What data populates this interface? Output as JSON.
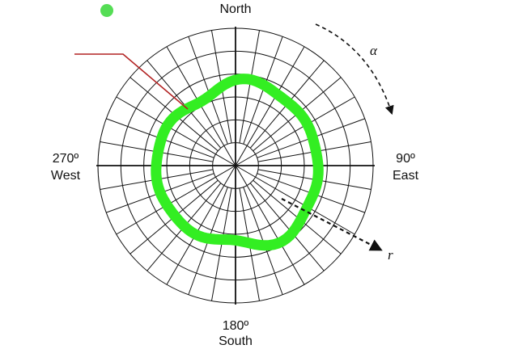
{
  "labels": {
    "north": "North",
    "east_deg": "90º",
    "east": "East",
    "south_deg": "180º",
    "south": "South",
    "west_deg": "270º",
    "west": "West",
    "alpha": "α",
    "r": "r"
  },
  "grid": {
    "ring_count": 6,
    "spoke_count": 36,
    "inner_hub_spokes": 12
  },
  "colors": {
    "grid": "#111111",
    "trace": "#33ee22",
    "marker": "#55dd55",
    "leader": "#b22222",
    "arrow": "#111111"
  },
  "icons": {
    "legend_marker": "green-dot-icon"
  }
}
